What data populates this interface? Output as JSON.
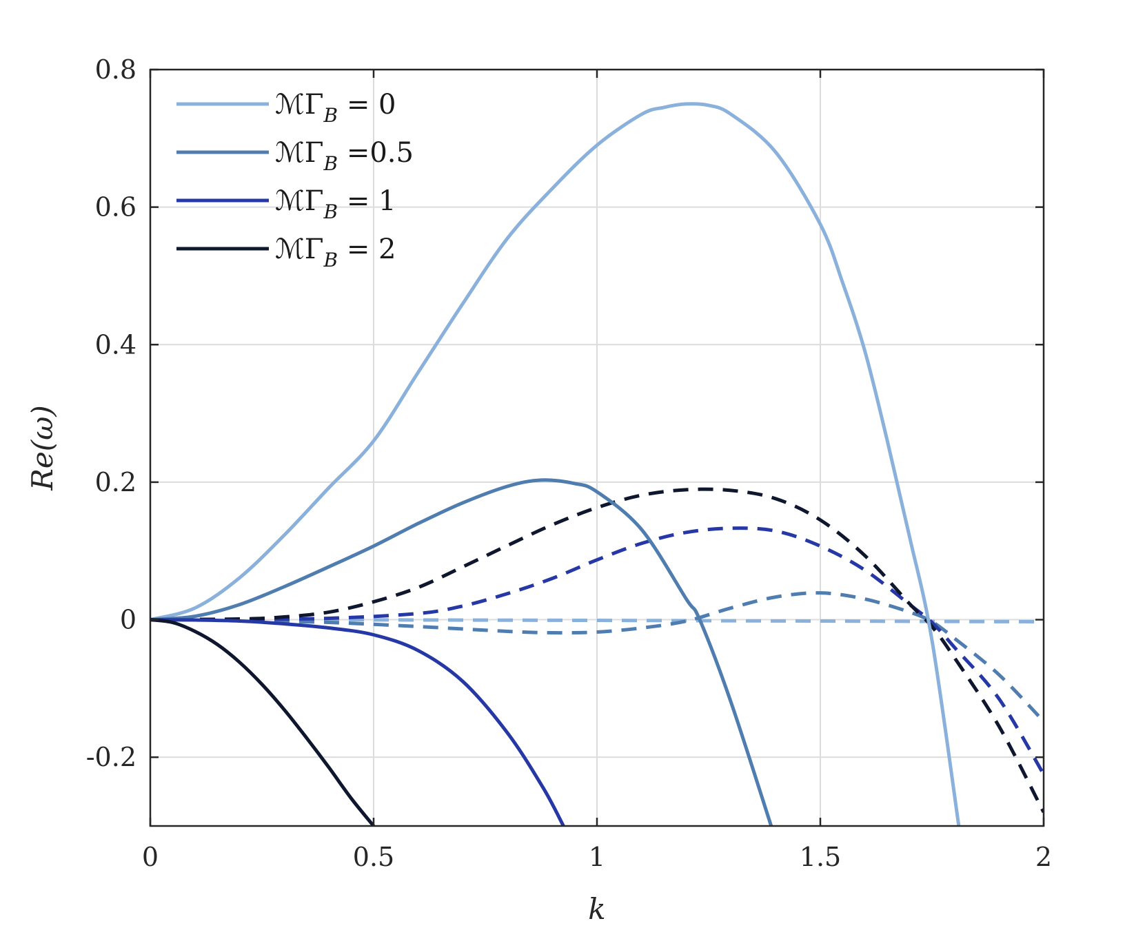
{
  "chart_data": {
    "type": "line",
    "title": "",
    "xlabel": "k",
    "ylabel": "Re(ω)",
    "xlim": [
      0,
      2
    ],
    "ylim": [
      -0.3,
      0.8
    ],
    "xticks": [
      0,
      0.5,
      1,
      1.5,
      2
    ],
    "xtick_labels": [
      "0",
      "0.5",
      "1",
      "1.5",
      "2"
    ],
    "yticks": [
      -0.2,
      0,
      0.2,
      0.4,
      0.6,
      0.8
    ],
    "ytick_labels": [
      "-0.2",
      "0",
      "0.2",
      "0.4",
      "0.6",
      "0.8"
    ],
    "grid": true,
    "legend_position": "top-left",
    "legend": [
      {
        "prefix": "ℳΓ",
        "sub": "B",
        "suffix": " = 0",
        "color": "#8ab0dc"
      },
      {
        "prefix": "ℳΓ",
        "sub": "B",
        "suffix": " =0.5",
        "color": "#4f7db0"
      },
      {
        "prefix": "ℳΓ",
        "sub": "B",
        "suffix": " = 1",
        "color": "#2538a6"
      },
      {
        "prefix": "ℳΓ",
        "sub": "B",
        "suffix": " = 2",
        "color": "#0f172e"
      }
    ],
    "series": [
      {
        "legend_index": 0,
        "style": "solid",
        "color": "#8ab0dc",
        "x": [
          0,
          0.1,
          0.2,
          0.3,
          0.4,
          0.5,
          0.6,
          0.7,
          0.8,
          0.9,
          1.0,
          1.1,
          1.15,
          1.2,
          1.25,
          1.3,
          1.4,
          1.5,
          1.55,
          1.6,
          1.65,
          1.7,
          1.75,
          1.81
        ],
        "y": [
          0,
          0.017,
          0.061,
          0.123,
          0.192,
          0.26,
          0.36,
          0.46,
          0.555,
          0.627,
          0.69,
          0.735,
          0.745,
          0.75,
          0.748,
          0.735,
          0.68,
          0.575,
          0.49,
          0.39,
          0.26,
          0.12,
          -0.03,
          -0.3
        ]
      },
      {
        "legend_index": 1,
        "style": "solid",
        "color": "#4f7db0",
        "x": [
          0,
          0.1,
          0.2,
          0.3,
          0.4,
          0.5,
          0.6,
          0.7,
          0.8,
          0.875,
          0.95,
          1.0,
          1.1,
          1.2,
          1.23,
          1.3,
          1.39
        ],
        "y": [
          0,
          0.005,
          0.022,
          0.048,
          0.077,
          0.107,
          0.14,
          0.17,
          0.194,
          0.203,
          0.198,
          0.186,
          0.131,
          0.03,
          0.0,
          -0.12,
          -0.3
        ]
      },
      {
        "legend_index": 2,
        "style": "solid",
        "color": "#2538a6",
        "x": [
          0,
          0.1,
          0.2,
          0.3,
          0.4,
          0.5,
          0.6,
          0.7,
          0.8,
          0.88,
          0.925
        ],
        "y": [
          0,
          -0.0005,
          -0.002,
          -0.006,
          -0.012,
          -0.022,
          -0.045,
          -0.09,
          -0.165,
          -0.245,
          -0.3
        ]
      },
      {
        "legend_index": 3,
        "style": "solid",
        "color": "#0f172e",
        "x": [
          0,
          0.05,
          0.1,
          0.15,
          0.2,
          0.25,
          0.3,
          0.35,
          0.4,
          0.45,
          0.5
        ],
        "y": [
          0,
          -0.004,
          -0.017,
          -0.036,
          -0.062,
          -0.094,
          -0.131,
          -0.172,
          -0.215,
          -0.26,
          -0.3
        ]
      },
      {
        "legend_index": 0,
        "style": "dashed",
        "color": "#8ab0dc",
        "x": [
          0,
          0.5,
          1.0,
          1.5,
          2.0
        ],
        "y": [
          0,
          -0.0003,
          -0.001,
          -0.002,
          -0.003
        ]
      },
      {
        "legend_index": 1,
        "style": "dashed",
        "color": "#4f7db0",
        "x": [
          0,
          0.2,
          0.4,
          0.6,
          0.8,
          0.9,
          1.0,
          1.1,
          1.2,
          1.3,
          1.4,
          1.5,
          1.6,
          1.7,
          1.75,
          1.8,
          1.9,
          2.0
        ],
        "y": [
          0,
          -0.001,
          -0.004,
          -0.01,
          -0.017,
          -0.019,
          -0.018,
          -0.012,
          -0.002,
          0.017,
          0.033,
          0.039,
          0.03,
          0.011,
          -0.003,
          -0.027,
          -0.08,
          -0.148
        ]
      },
      {
        "legend_index": 2,
        "style": "dashed",
        "color": "#2538a6",
        "x": [
          0,
          0.2,
          0.4,
          0.6,
          0.7,
          0.8,
          0.9,
          1.0,
          1.1,
          1.2,
          1.3,
          1.4,
          1.5,
          1.6,
          1.7,
          1.75,
          1.8,
          1.9,
          2.0
        ],
        "y": [
          0,
          0.0005,
          0.002,
          0.009,
          0.02,
          0.038,
          0.06,
          0.087,
          0.111,
          0.127,
          0.133,
          0.129,
          0.107,
          0.072,
          0.022,
          -0.004,
          -0.04,
          -0.115,
          -0.225
        ]
      },
      {
        "legend_index": 3,
        "style": "dashed",
        "color": "#0f172e",
        "x": [
          0,
          0.2,
          0.3,
          0.4,
          0.5,
          0.6,
          0.7,
          0.8,
          0.9,
          1.0,
          1.1,
          1.2,
          1.3,
          1.4,
          1.5,
          1.6,
          1.7,
          1.75,
          1.8,
          1.9,
          2.0
        ],
        "y": [
          0,
          0.001,
          0.004,
          0.011,
          0.026,
          0.047,
          0.077,
          0.108,
          0.138,
          0.163,
          0.181,
          0.189,
          0.188,
          0.176,
          0.145,
          0.093,
          0.023,
          -0.01,
          -0.055,
          -0.155,
          -0.28
        ]
      }
    ]
  }
}
